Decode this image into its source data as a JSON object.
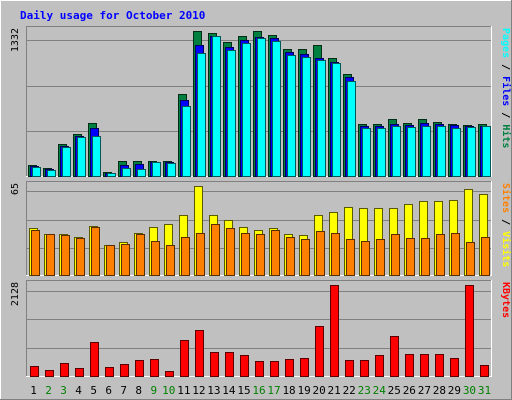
{
  "chart_data": {
    "type": "bar",
    "title": "Daily usage for October 2010",
    "categories": [
      "1",
      "2",
      "3",
      "4",
      "5",
      "6",
      "7",
      "8",
      "9",
      "10",
      "11",
      "12",
      "13",
      "14",
      "15",
      "16",
      "17",
      "18",
      "19",
      "20",
      "21",
      "22",
      "23",
      "24",
      "25",
      "26",
      "27",
      "28",
      "29",
      "30",
      "31"
    ],
    "weekend_days": [
      "2",
      "3",
      "9",
      "10",
      "16",
      "17",
      "23",
      "24",
      "30",
      "31"
    ],
    "panels": [
      {
        "id": "hits-panel",
        "scale_max": 1332,
        "scale_label": "1332",
        "legend": [
          "Pages",
          "Files",
          "Hits"
        ],
        "series": [
          {
            "name": "Hits",
            "color": "#008040",
            "values": [
              105,
              75,
              290,
              385,
              490,
              35,
              140,
              135,
              140,
              135,
              755,
              1330,
              1310,
              1235,
              1290,
              1330,
              1295,
              1165,
              1170,
              1205,
              1085,
              935,
              475,
              475,
              520,
              490,
              520,
              495,
              480,
              470,
              480
            ]
          },
          {
            "name": "Files",
            "color": "#0000ff",
            "values": [
              95,
              65,
              275,
              365,
              440,
              30,
              105,
              110,
              130,
              125,
              700,
              1200,
              1290,
              1185,
              1245,
              1275,
              1270,
              1135,
              1125,
              1080,
              1050,
              905,
              460,
              460,
              480,
              470,
              485,
              475,
              465,
              460,
              460
            ]
          },
          {
            "name": "Pages",
            "color": "#00ffff",
            "values": [
              80,
              55,
              265,
              355,
              365,
              25,
              70,
              60,
              125,
              120,
              640,
              1130,
              1285,
              1155,
              1225,
              1265,
              1240,
              1115,
              1095,
              1065,
              1035,
              870,
              445,
              440,
              455,
              450,
              460,
              455,
              445,
              450,
              455
            ]
          }
        ]
      },
      {
        "id": "visits-panel",
        "scale_max": 65,
        "scale_label": "65",
        "legend": [
          "Sites",
          "Visits"
        ],
        "series": [
          {
            "name": "Visits",
            "color": "#ffff00",
            "values": [
              34,
              30,
              30,
              28,
              36,
              22,
              24,
              31,
              35,
              37,
              44,
              65,
              44,
              40,
              35,
              33,
              34,
              30,
              29,
              44,
              46,
              50,
              49,
              49,
              49,
              52,
              54,
              54,
              55,
              63,
              59
            ]
          },
          {
            "name": "Sites",
            "color": "#ff8000",
            "values": [
              33,
              30,
              29,
              27,
              35,
              22,
              23,
              30,
              25,
              22,
              28,
              31,
              37,
              34,
              31,
              30,
              33,
              28,
              26,
              32,
              31,
              26,
              25,
              26,
              30,
              27,
              27,
              30,
              31,
              24,
              28
            ]
          }
        ]
      },
      {
        "id": "kbytes-panel",
        "scale_max": 2128,
        "scale_label": "2128",
        "legend": [
          "KBytes"
        ],
        "series": [
          {
            "name": "KBytes",
            "color": "#ff0000",
            "values": [
              240,
              150,
              305,
              180,
              800,
              205,
              285,
              365,
              405,
              110,
              835,
              1085,
              555,
              570,
              490,
              355,
              355,
              395,
              410,
              1170,
              2128,
              370,
              380,
              490,
              930,
              520,
              520,
              520,
              425,
              2128,
              255
            ]
          }
        ]
      }
    ]
  },
  "colors": {
    "background": "#c0c0c0",
    "plot_background": "#c0c0c0",
    "grid": "#808080",
    "title": "#0000ff",
    "weekday_label": "#000000",
    "weekend_label": "#008000"
  }
}
